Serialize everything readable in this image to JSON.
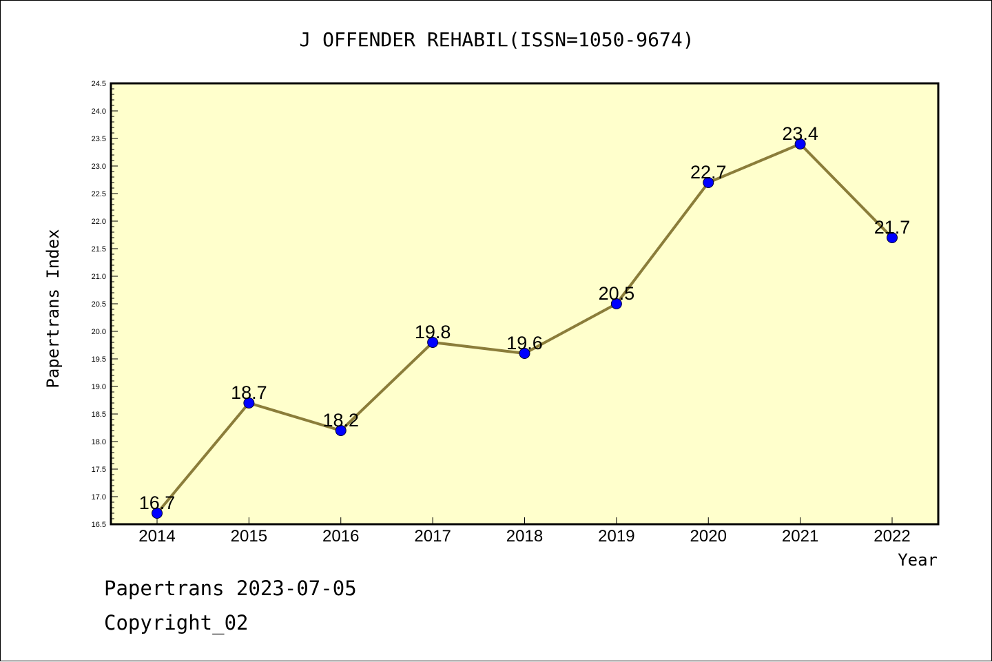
{
  "chart_data": {
    "type": "line",
    "title": "J OFFENDER REHABIL(ISSN=1050-9674)",
    "xlabel": "Year",
    "ylabel": "Papertrans Index",
    "categories": [
      "2014",
      "2015",
      "2016",
      "2017",
      "2018",
      "2019",
      "2020",
      "2021",
      "2022"
    ],
    "series": [
      {
        "values": [
          16.7,
          18.7,
          18.2,
          19.8,
          19.6,
          20.5,
          22.7,
          23.4,
          21.7
        ],
        "data_labels": [
          "16.7",
          "18.7",
          "18.2",
          "19.8",
          "19.6",
          "20.5",
          "22.7",
          "23.4",
          "21.7"
        ]
      }
    ],
    "ylim": [
      16.5,
      24.5
    ],
    "y_ticks": [
      "16.5",
      "17.0",
      "17.5",
      "18.0",
      "18.5",
      "19.0",
      "19.5",
      "20.0",
      "20.5",
      "21.0",
      "21.5",
      "22.0",
      "22.5",
      "23.0",
      "23.5",
      "24.0",
      "24.5"
    ],
    "grid": false,
    "colors": {
      "plot_background": "#ffffcc",
      "line": "#8b7d3a",
      "marker": "#0000ff"
    }
  },
  "footer": {
    "line1": "Papertrans 2023-07-05",
    "line2": "Copyright_02"
  }
}
